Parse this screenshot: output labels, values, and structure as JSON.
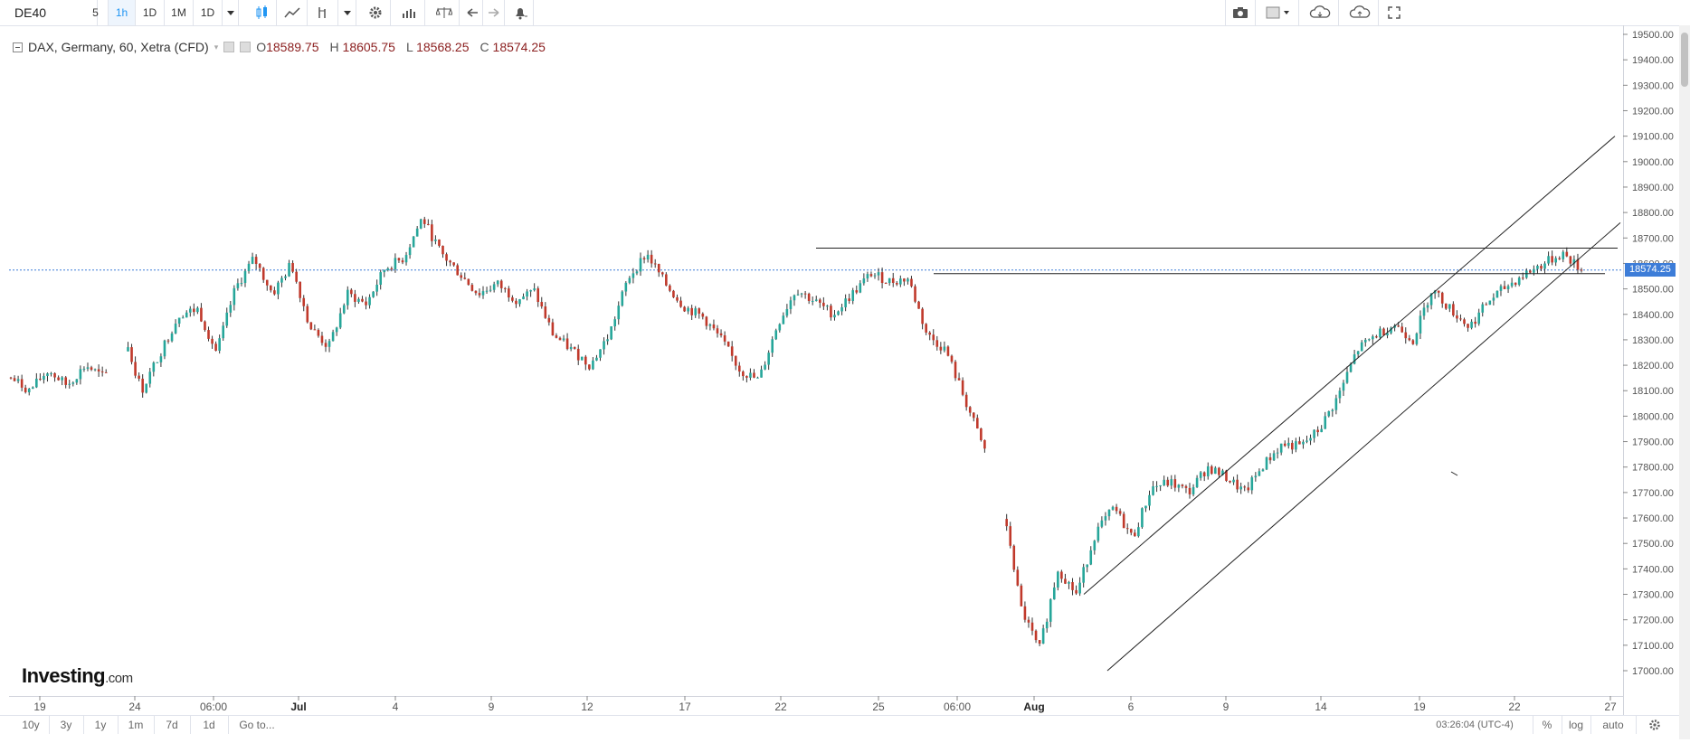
{
  "toolbar": {
    "symbol": "DE40",
    "intervals": [
      "5",
      "1h",
      "1D",
      "1M",
      "1D"
    ],
    "active_interval": "1h"
  },
  "legend": {
    "title": "DAX, Germany, 60, Xetra (CFD)",
    "open_label": "O",
    "open": "18589.75",
    "high_label": "H",
    "high": "18605.75",
    "low_label": "L",
    "low": "18568.25",
    "close_label": "C",
    "close": "18574.25"
  },
  "last_price": "18574.25",
  "logo": {
    "brand": "Investing",
    "domain": ".com"
  },
  "bottom": {
    "ranges": [
      "10y",
      "3y",
      "1y",
      "1m",
      "7d",
      "1d",
      "Go to..."
    ],
    "clock": "03:26:04 (UTC-4)",
    "percent": "%",
    "log": "log",
    "auto": "auto"
  },
  "colors": {
    "up": "#26a69a",
    "down": "#c0392b",
    "price_line": "#3d7dd8"
  },
  "chart_data": {
    "type": "candlestick",
    "y_ticks": [
      "19500.00",
      "19400.00",
      "19300.00",
      "19200.00",
      "19100.00",
      "19000.00",
      "18900.00",
      "18800.00",
      "18700.00",
      "18600.00",
      "18500.00",
      "18400.00",
      "18300.00",
      "18200.00",
      "18100.00",
      "18000.00",
      "17900.00",
      "17800.00",
      "17700.00",
      "17600.00",
      "17500.00",
      "17400.00",
      "17300.00",
      "17200.00",
      "17100.00",
      "17000.00"
    ],
    "ylim": [
      16960,
      19520
    ],
    "x_labels": [
      "19",
      "24",
      "06:00",
      "Jul",
      "4",
      "9",
      "12",
      "17",
      "22",
      "25",
      "06:00",
      "Aug",
      "6",
      "9",
      "14",
      "19",
      "22",
      "27"
    ],
    "path": [
      18150,
      18100,
      18180,
      18120,
      18200,
      18150,
      18320,
      18100,
      18250,
      18400,
      18420,
      18250,
      18500,
      18620,
      18480,
      18600,
      18350,
      18270,
      18480,
      18440,
      18580,
      18620,
      18780,
      18640,
      18560,
      18480,
      18520,
      18460,
      18490,
      18320,
      18260,
      18200,
      18320,
      18540,
      18640,
      18520,
      18430,
      18390,
      18300,
      18180,
      18140,
      18360,
      18500,
      18450,
      18400,
      18480,
      18560,
      18530,
      18540,
      18320,
      18260,
      18070,
      17880,
      17700,
      17250,
      17080,
      17400,
      17300,
      17540,
      17640,
      17520,
      17720,
      17740,
      17700,
      17800,
      17760,
      17700,
      17810,
      17890,
      17880,
      17950,
      18080,
      18260,
      18320,
      18360,
      18300,
      18500,
      18420,
      18350,
      18450,
      18510,
      18560,
      18600,
      18640,
      18574
    ],
    "gaps": [
      [
        5,
        6
      ],
      [
        52,
        53
      ]
    ],
    "channel": {
      "upper": [
        [
          "Aug 5",
          17300
        ],
        [
          "Aug 26",
          19100
        ]
      ],
      "lower": [
        [
          "Aug 5",
          17000
        ],
        [
          "Aug 26",
          18760
        ]
      ]
    },
    "resistance": [
      18660,
      18560
    ],
    "last_close": 18574.25
  }
}
